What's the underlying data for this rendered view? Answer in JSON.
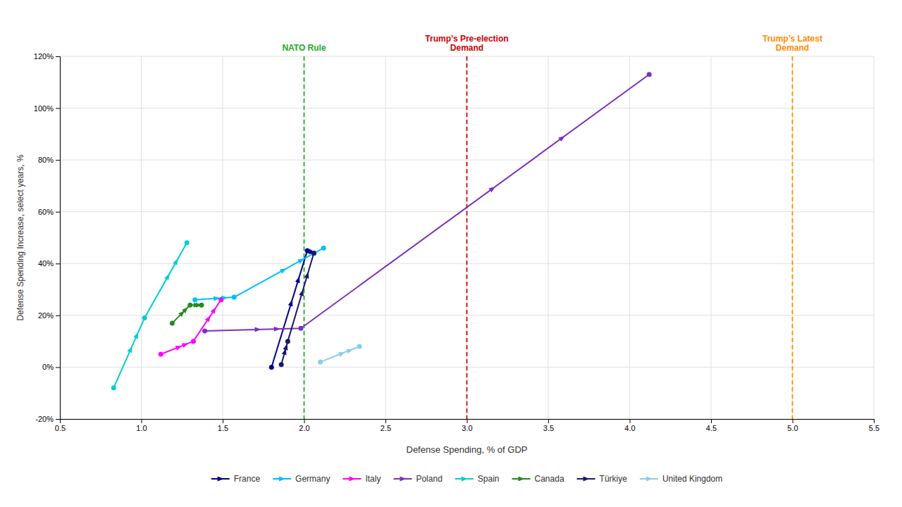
{
  "chart_data": {
    "type": "line",
    "xlabel": "Defense Spending, % of GDP",
    "ylabel": "Defense Spending Increase, select years, %",
    "series": [
      {
        "name": "France",
        "color": "#00008B",
        "x": [
          1.8,
          2.02,
          2.06
        ],
        "values": [
          0.0,
          45.0,
          44.0
        ]
      },
      {
        "name": "Germany",
        "color": "#00BFFF",
        "x": [
          1.33,
          1.57,
          2.12
        ],
        "values": [
          26.0,
          27.0,
          46.0
        ]
      },
      {
        "name": "Italy",
        "color": "#FF00FF",
        "x": [
          1.12,
          1.32,
          1.49
        ],
        "values": [
          5.0,
          10.0,
          26.0
        ]
      },
      {
        "name": "Poland",
        "color": "#7B2FBE",
        "x": [
          1.39,
          1.98,
          4.12
        ],
        "values": [
          14.0,
          15.0,
          113.0
        ]
      },
      {
        "name": "Spain",
        "color": "#00CED1",
        "x": [
          0.83,
          1.02,
          1.28
        ],
        "values": [
          -8.0,
          19.0,
          48.0
        ]
      },
      {
        "name": "Canada",
        "color": "#228B22",
        "x": [
          1.19,
          1.3,
          1.37
        ],
        "values": [
          17.0,
          24.0,
          24.0
        ]
      },
      {
        "name": "Türkiye",
        "color": "#191970",
        "x": [
          1.86,
          1.9,
          2.06
        ],
        "values": [
          1.0,
          10.0,
          44.0
        ]
      },
      {
        "name": "United Kingdom",
        "color": "#87CEEB",
        "x": [
          2.1,
          2.34
        ],
        "values": [
          2.0,
          8.0
        ]
      }
    ],
    "annotations": [
      {
        "x": 2.0,
        "color": "#22AA22",
        "label": "NATO Rule"
      },
      {
        "x": 3.0,
        "color": "#CC0000",
        "label": "Trump’s Pre-election\nDemand"
      },
      {
        "x": 5.0,
        "color": "#FF8C00",
        "label": "Trump’s Latest\nDemand"
      }
    ],
    "xlim": [
      0.5,
      5.5
    ],
    "ylim": [
      -20,
      120
    ],
    "xticks": [
      0.5,
      {
        "value": 1.0,
        "label": "1.0"
      },
      1.5,
      {
        "value": 2.0,
        "label": "2.0"
      },
      2.5,
      {
        "value": 3.0,
        "label": "3.0"
      },
      3.5,
      {
        "value": 4.0,
        "label": "4.0"
      },
      4.5,
      {
        "value": 5.0,
        "label": "5.0"
      },
      5.5
    ],
    "yticks": [
      {
        "value": -20,
        "label": "-20%"
      },
      {
        "value": 0,
        "label": "0%"
      },
      {
        "value": 20,
        "label": "20%"
      },
      {
        "value": 40,
        "label": "40%"
      },
      {
        "value": 60,
        "label": "60%"
      },
      {
        "value": 80,
        "label": "80%"
      },
      {
        "value": 100,
        "label": "100%"
      },
      {
        "value": 120,
        "label": "120%"
      }
    ],
    "grid": true,
    "marker": "circle",
    "legend": "bottom"
  }
}
